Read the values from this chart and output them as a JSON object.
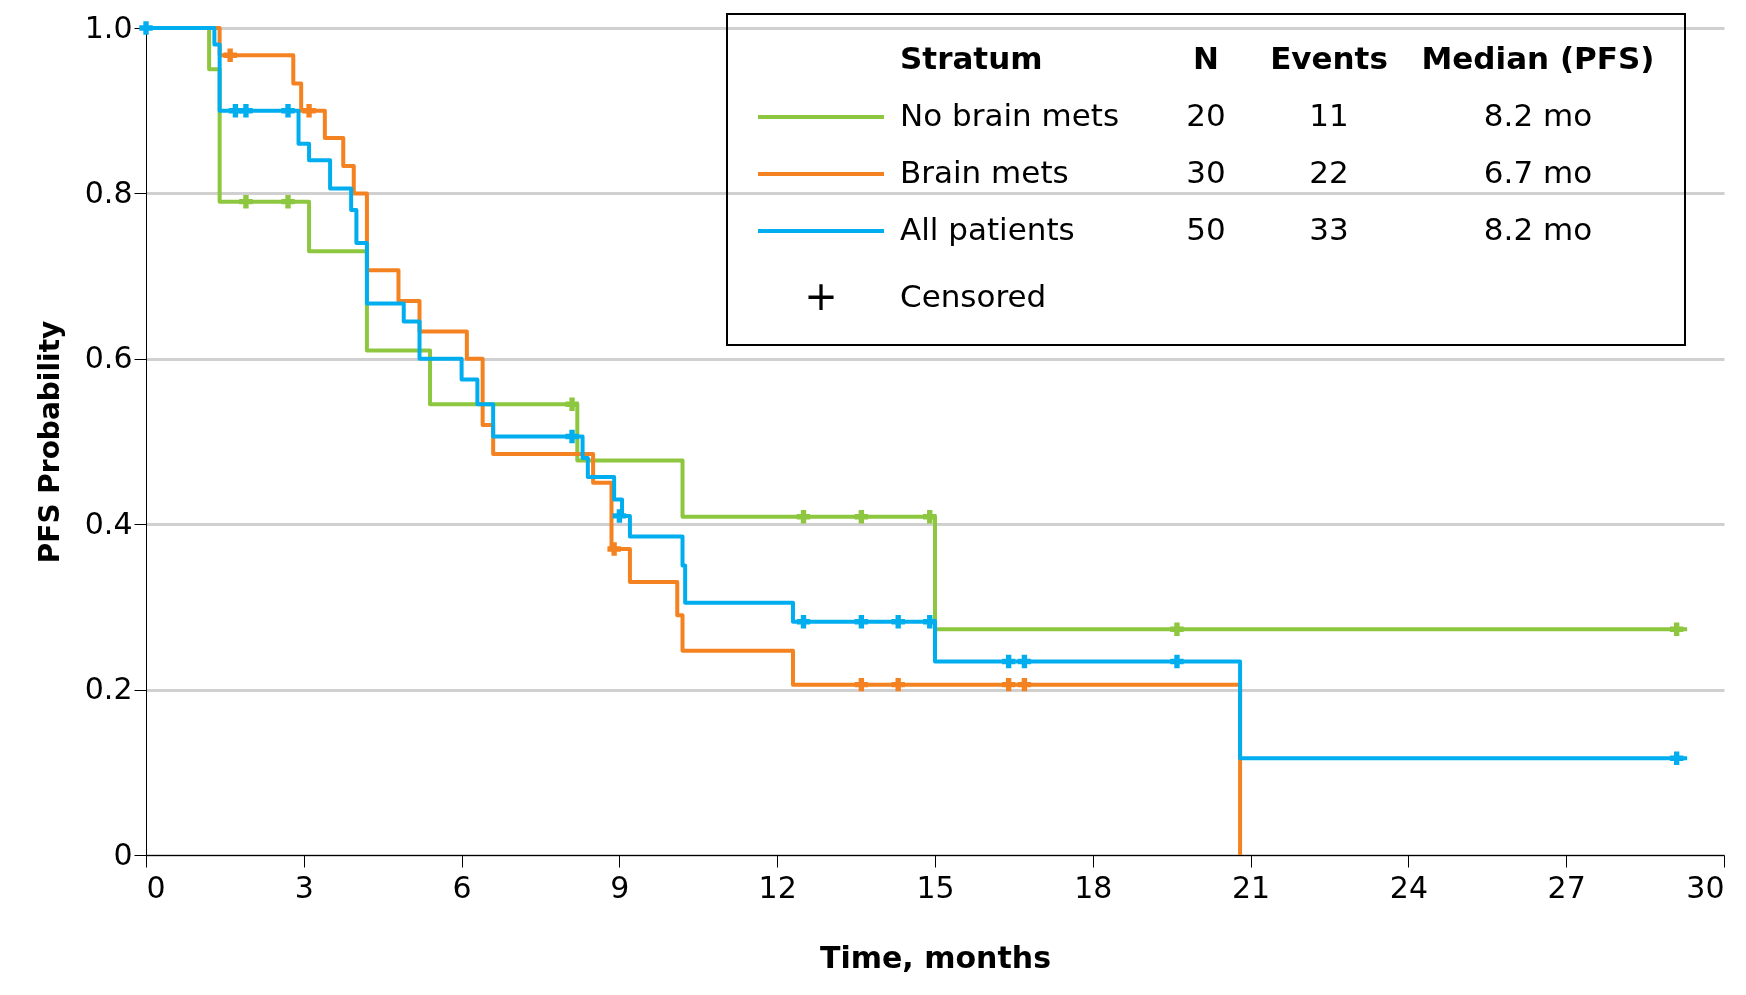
{
  "chart_data": {
    "type": "step",
    "xlabel": "Time, months",
    "ylabel": "PFS Probability",
    "xlim": [
      0,
      30
    ],
    "xticks": [
      0,
      3,
      6,
      9,
      12,
      15,
      18,
      21,
      24,
      27,
      30
    ],
    "ylim": [
      0,
      1
    ],
    "yticks": [
      0,
      0.2,
      0.4,
      0.6,
      0.8,
      {
        "value": 1,
        "label": "1.0"
      }
    ],
    "grid": "y",
    "legend": "top right",
    "line_style": "solid",
    "series": [
      {
        "name": "No brain mets",
        "color": "#8dc63f",
        "x": [
          0,
          1.2,
          1.4,
          3.1,
          4.2,
          5.4,
          8.2,
          10.2,
          15.0,
          29.3
        ],
        "values": [
          1,
          0.95,
          0.79,
          0.73,
          0.61,
          0.545,
          0.477,
          0.409,
          0.273,
          0.273
        ]
      },
      {
        "name": "Brain mets",
        "color": "#f58220",
        "x": [
          0,
          1.4,
          2.8,
          2.95,
          3.4,
          3.75,
          3.95,
          4.2,
          4.8,
          5.2,
          6.1,
          6.4,
          6.6,
          8.5,
          8.85,
          9.2,
          10.1,
          10.2,
          12.3,
          20.8
        ],
        "values": [
          1,
          0.967,
          0.933,
          0.9,
          0.867,
          0.833,
          0.8,
          0.707,
          0.67,
          0.633,
          0.6,
          0.52,
          0.485,
          0.45,
          0.37,
          0.33,
          0.29,
          0.247,
          0.206,
          0
        ]
      },
      {
        "name": "All patients",
        "color": "#00aeef",
        "x": [
          0,
          1.3,
          1.4,
          2.9,
          3.1,
          3.5,
          3.9,
          4.0,
          4.2,
          4.9,
          5.2,
          6.0,
          6.3,
          6.6,
          8.3,
          8.4,
          8.9,
          9.05,
          9.2,
          10.2,
          10.25,
          12.3,
          15.0,
          20.8,
          29.3
        ],
        "values": [
          1,
          0.98,
          0.9,
          0.86,
          0.84,
          0.806,
          0.78,
          0.74,
          0.667,
          0.645,
          0.6,
          0.575,
          0.545,
          0.506,
          0.48,
          0.457,
          0.43,
          0.41,
          0.385,
          0.35,
          0.305,
          0.282,
          0.234,
          0.117,
          0.117
        ]
      },
      {
        "type": "scatter",
        "marker": "cross",
        "color": "#8dc63f",
        "x": [
          1.9,
          2.7,
          8.1,
          12.5,
          13.6,
          14.9,
          19.6,
          29.1
        ],
        "values": [
          0.79,
          0.79,
          0.545,
          0.409,
          0.409,
          0.409,
          0.273,
          0.273
        ]
      },
      {
        "type": "scatter",
        "marker": "cross",
        "color": "#f58220",
        "x": [
          1.6,
          3.1,
          8.9,
          13.6,
          14.3,
          16.4,
          16.7
        ],
        "values": [
          0.967,
          0.9,
          0.37,
          0.206,
          0.206,
          0.206,
          0.206
        ]
      },
      {
        "type": "scatter",
        "marker": "cross",
        "color": "#00aeef",
        "x": [
          0,
          1.7,
          1.9,
          2.7,
          8.1,
          9.0,
          12.5,
          13.6,
          14.3,
          14.9,
          16.4,
          16.7,
          19.6,
          29.1
        ],
        "values": [
          1,
          0.9,
          0.9,
          0.9,
          0.506,
          0.41,
          0.282,
          0.282,
          0.282,
          0.282,
          0.234,
          0.234,
          0.234,
          0.117
        ]
      }
    ],
    "annotations": [
      "Stratum",
      "N",
      "Events",
      "Median (PFS)",
      "20",
      "11",
      "8.2 mo",
      "30",
      "22",
      "6.7 mo",
      "50",
      "33",
      "8.2 mo",
      "+",
      "Censored"
    ]
  }
}
